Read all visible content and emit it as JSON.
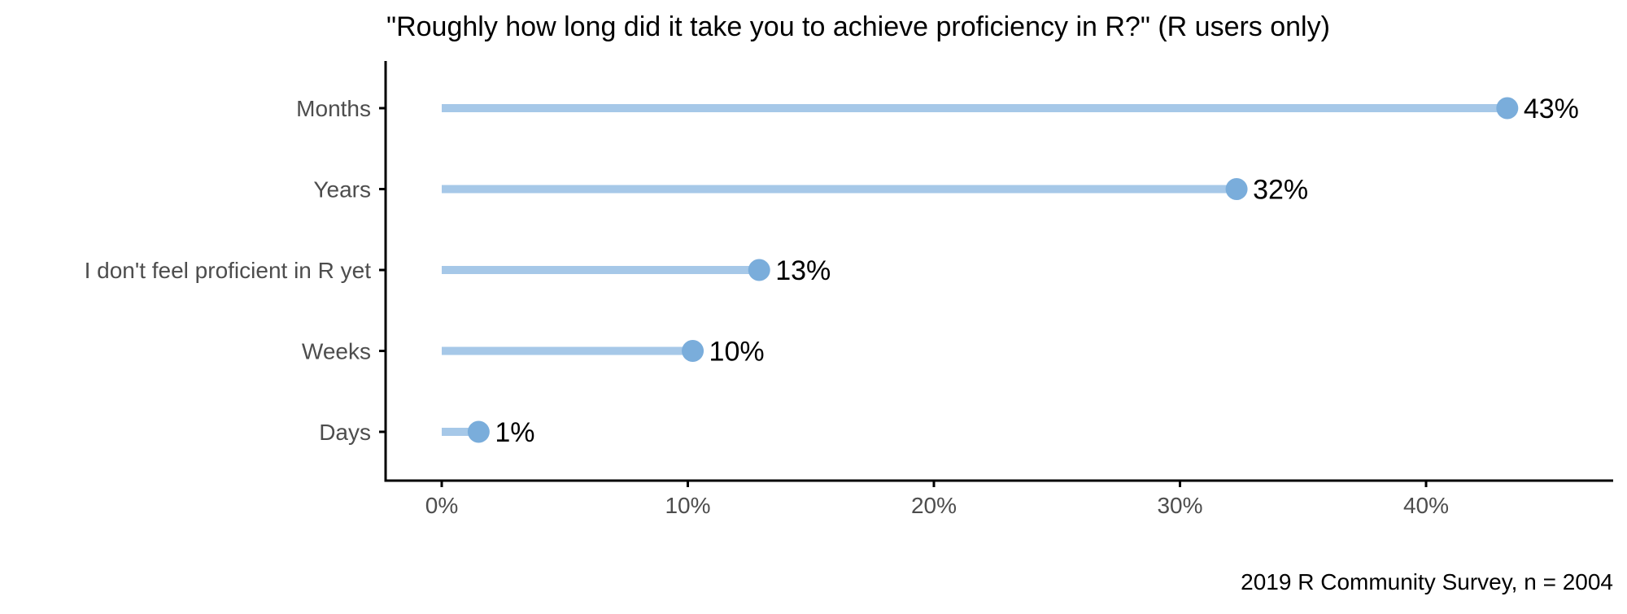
{
  "chart_data": {
    "type": "lollipop",
    "title": "\"Roughly how long did it take you to achieve proficiency in R?\" (R users only)",
    "caption": "2019 R Community Survey, n = 2004",
    "xlabel": "",
    "ylabel": "",
    "orientation": "horizontal",
    "categories": [
      "Months",
      "Years",
      "I don't feel proficient in R yet",
      "Weeks",
      "Days"
    ],
    "values": [
      43.3,
      32.3,
      12.9,
      10.2,
      1.5
    ],
    "value_labels": [
      "43%",
      "32%",
      "13%",
      "10%",
      "1%"
    ],
    "xlim": [
      0,
      45
    ],
    "x_ticks": [
      0,
      10,
      20,
      30,
      40
    ],
    "x_tick_labels": [
      "0%",
      "10%",
      "20%",
      "30%",
      "40%"
    ],
    "grid": false,
    "legend": "none",
    "colors": {
      "stem": "#a6c8e8",
      "dot": "#7aaddb",
      "axis": "#000000",
      "tick_text": "#4d4d4d",
      "label_text": "#000000"
    }
  }
}
